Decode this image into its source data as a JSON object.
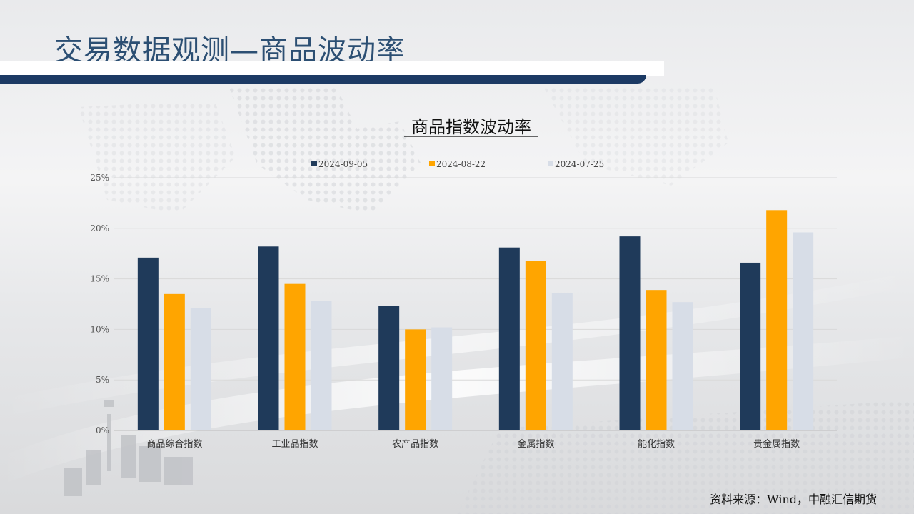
{
  "slide": {
    "title": "交易数据观测—商品波动率",
    "source": "资料来源：Wind，中融汇信期货"
  },
  "chart_data": {
    "type": "bar",
    "title": "商品指数波动率",
    "categories": [
      "商品综合指数",
      "工业品指数",
      "农产品指数",
      "金属指数",
      "能化指数",
      "贵金属指数"
    ],
    "series": [
      {
        "name": "2024-09-05",
        "color": "#1f3a5a",
        "values": [
          17.1,
          18.2,
          12.3,
          18.1,
          19.2,
          16.6
        ]
      },
      {
        "name": "2024-08-22",
        "color": "#ffa500",
        "values": [
          13.5,
          14.5,
          10.0,
          16.8,
          13.9,
          21.8
        ]
      },
      {
        "name": "2024-07-25",
        "color": "#d7dde7",
        "values": [
          12.1,
          12.8,
          10.2,
          13.6,
          12.7,
          19.6
        ]
      }
    ],
    "y_ticks": [
      "0%",
      "5%",
      "10%",
      "15%",
      "20%",
      "25%"
    ],
    "ylim": [
      0,
      25
    ],
    "xlabel": "",
    "ylabel": "",
    "legend": "top-center",
    "grid": true
  }
}
